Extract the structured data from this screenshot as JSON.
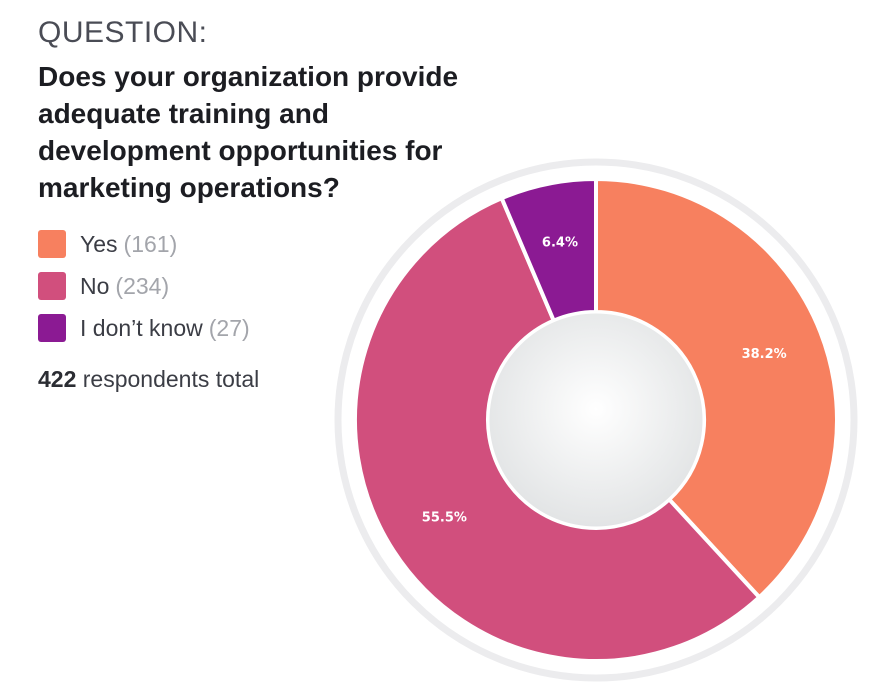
{
  "question": {
    "label": "QUESTION:",
    "text": "Does your organization provide adequate training and development opportunities for marketing operations?"
  },
  "legend": [
    {
      "label": "Yes",
      "count": "(161)",
      "color": "#f7805f"
    },
    {
      "label": "No",
      "count": "(234)",
      "color": "#d14f7d"
    },
    {
      "label": "I don’t know",
      "count": "(27)",
      "color": "#8b1a93"
    }
  ],
  "total": {
    "number": "422",
    "text": "respondents total"
  },
  "chart_data": {
    "type": "pie",
    "style": "donut",
    "title": "Does your organization provide adequate training and development opportunities for marketing operations?",
    "categories": [
      "Yes",
      "No",
      "I don’t know"
    ],
    "values": [
      161,
      234,
      27
    ],
    "percent_labels": [
      "38.2%",
      "55.5%",
      "6.4%"
    ],
    "colors": [
      "#f7805f",
      "#d14f7d",
      "#8b1a93"
    ],
    "total": 422,
    "start_angle_deg": 0,
    "direction": "clockwise"
  }
}
